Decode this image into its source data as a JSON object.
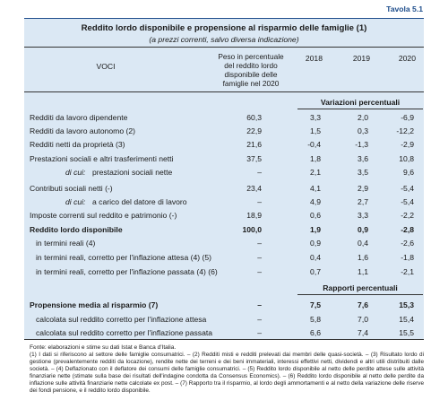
{
  "header": {
    "tag": "Tavola 5.1",
    "title": "Reddito lordo disponibile e propensione al risparmio delle famiglie (1)",
    "subtitle": "(a prezzi correnti, salvo diversa indicazione)"
  },
  "table": {
    "columns": [
      "VOCI",
      "Peso in percentuale del reddito lordo disponibile delle famiglie nel 2020",
      "2018",
      "2019",
      "2020"
    ],
    "sections": [
      {
        "heading": "Variazioni percentuali",
        "rows": [
          {
            "label": "Redditi da lavoro dipendente",
            "cells": [
              "60,3",
              "3,3",
              "2,0",
              "-6,9"
            ]
          },
          {
            "label": "Redditi da lavoro autonomo (2)",
            "cells": [
              "22,9",
              "1,5",
              "0,3",
              "-12,2"
            ]
          },
          {
            "label": "Redditi netti da proprietà (3)",
            "cells": [
              "21,6",
              "-0,4",
              "-1,3",
              "-2,9"
            ]
          },
          {
            "label": "Prestazioni sociali e altri trasferimenti netti",
            "cells": [
              "37,5",
              "1,8",
              "3,6",
              "10,8"
            ]
          },
          {
            "prefix": "di cui:",
            "label": "prestazioni sociali nette",
            "cells": [
              "–",
              "2,1",
              "3,5",
              "9,6"
            ]
          },
          {
            "label": "Contributi sociali netti (-)",
            "cells": [
              "23,4",
              "4,1",
              "2,9",
              "-5,4"
            ]
          },
          {
            "prefix": "di cui:",
            "label": "a carico del datore di lavoro",
            "cells": [
              "–",
              "4,9",
              "2,7",
              "-5,4"
            ]
          },
          {
            "label": "Imposte correnti sul reddito e patrimonio (-)",
            "cells": [
              "18,9",
              "0,6",
              "3,3",
              "-2,2"
            ]
          },
          {
            "label": "Reddito lordo disponibile",
            "cells": [
              "100,0",
              "1,9",
              "0,9",
              "-2,8"
            ]
          },
          {
            "label": "in termini reali (4)",
            "cells": [
              "–",
              "0,9",
              "0,4",
              "-2,6"
            ]
          },
          {
            "label": "in termini reali, corretto per l'inflazione attesa (4) (5)",
            "cells": [
              "–",
              "0,4",
              "1,6",
              "-1,8"
            ]
          },
          {
            "label": "in termini reali, corretto per l'inflazione passata (4) (6)",
            "cells": [
              "–",
              "0,7",
              "1,1",
              "-2,1"
            ]
          }
        ]
      },
      {
        "heading": "Rapporti percentuali",
        "rows": [
          {
            "label": "Propensione media al risparmio (7)",
            "cells": [
              "–",
              "7,5",
              "7,6",
              "15,3"
            ]
          },
          {
            "label": "calcolata sul reddito corretto per l'inflazione attesa",
            "cells": [
              "–",
              "5,8",
              "7,0",
              "15,4"
            ]
          },
          {
            "label": "calcolata sul reddito corretto per l'inflazione passata",
            "cells": [
              "–",
              "6,6",
              "7,4",
              "15,5"
            ]
          }
        ]
      }
    ]
  },
  "notes": [
    "Fonte: elaborazioni e stime su dati Istat e Banca d'Italia.",
    "(1) I dati si riferiscono al settore delle famiglie consumatrici. – (2) Redditi misti e redditi prelevati dai membri delle quasi-società. – (3) Risultato lordo di gestione (prevalentemente redditi da locazione), rendite nette dei terreni e dei beni immateriali, interessi effettivi netti, dividendi e altri utili distribuiti dalle società. – (4) Deflazionato con il deflatore dei consumi delle famiglie consumatrici. – (5) Reddito lordo disponibile al netto delle perdite attese sulle attività finanziarie nette (stimate sulla base dei risultati dell'indagine condotta da Consensus Economics). – (6) Reddito lordo disponibile al netto delle perdite da inflazione sulle attività finanziarie nette calcolate ex post. – (7) Rapporto tra il risparmio, al lordo degli ammortamenti e al netto della variazione delle riserve dei fondi pensione, e il reddito lordo disponibile."
  ]
}
